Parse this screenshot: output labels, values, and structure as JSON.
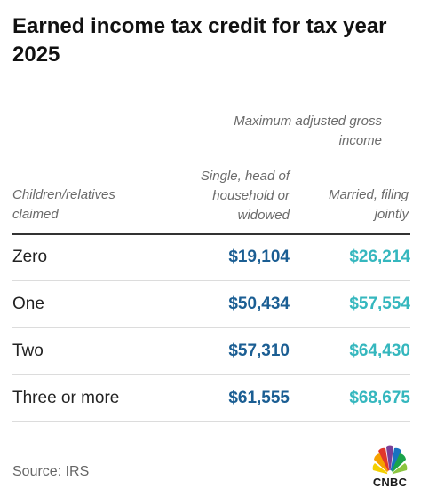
{
  "title": "Earned income tax credit for tax year 2025",
  "group_header": "Maximum adjusted gross income",
  "columns": {
    "label": "Children/relatives claimed",
    "single": "Single, head of household or widowed",
    "married": "Married, filing jointly"
  },
  "rows": [
    {
      "label": "Zero",
      "single": "$19,104",
      "married": "$26,214"
    },
    {
      "label": "One",
      "single": "$50,434",
      "married": "$57,554"
    },
    {
      "label": "Two",
      "single": "$57,310",
      "married": "$64,430"
    },
    {
      "label": "Three or more",
      "single": "$61,555",
      "married": "$68,675"
    }
  ],
  "source": "Source: IRS",
  "logo": {
    "text": "CNBC",
    "icon": "peacock-icon"
  },
  "colors": {
    "single": "#1b5e93",
    "married": "#35b7be"
  }
}
